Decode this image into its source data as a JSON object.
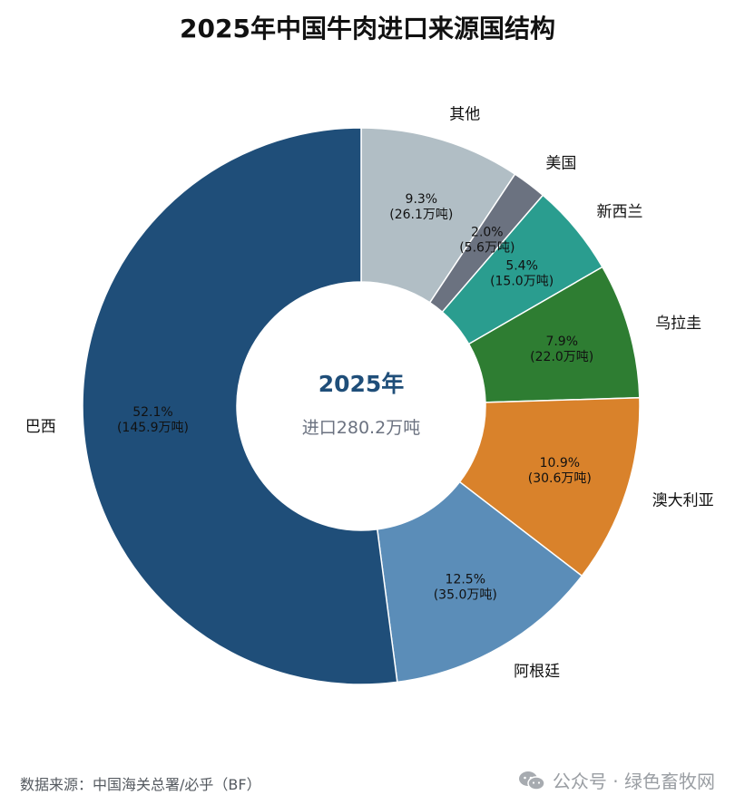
{
  "chart_data": {
    "type": "pie",
    "title": "2025年中国牛肉进口来源国结构",
    "center_title": "2025年",
    "center_subtitle": "进口280.2万吨",
    "slices": [
      {
        "label": "其他",
        "value": 26.1,
        "pct_label": "9.3%",
        "val_label": "(26.1万吨)",
        "color": "#b1bec5"
      },
      {
        "label": "美国",
        "value": 5.6,
        "pct_label": "2.0%",
        "val_label": "(5.6万吨)",
        "color": "#6b7280"
      },
      {
        "label": "新西兰",
        "value": 15.0,
        "pct_label": "5.4%",
        "val_label": "(15.0万吨)",
        "color": "#2a9d8f"
      },
      {
        "label": "乌拉圭",
        "value": 22.0,
        "pct_label": "7.9%",
        "val_label": "(22.0万吨)",
        "color": "#2e7d32"
      },
      {
        "label": "澳大利亚",
        "value": 30.6,
        "pct_label": "10.9%",
        "val_label": "(30.6万吨)",
        "color": "#d9822b"
      },
      {
        "label": "阿根廷",
        "value": 35.0,
        "pct_label": "12.5%",
        "val_label": "(35.0万吨)",
        "color": "#5b8db8"
      },
      {
        "label": "巴西",
        "value": 145.9,
        "pct_label": "52.1%",
        "val_label": "(145.9万吨)",
        "color": "#1f4e79"
      }
    ]
  },
  "footer": {
    "source": "数据来源：中国海关总署/必乎（BF）",
    "watermark": "公众号 · 绿色畜牧网",
    "watermark_icon": "wechat-icon"
  },
  "colors": {
    "center_title": "#1f4e79",
    "center_subtitle": "#6b7280",
    "label_text": "#111111"
  }
}
